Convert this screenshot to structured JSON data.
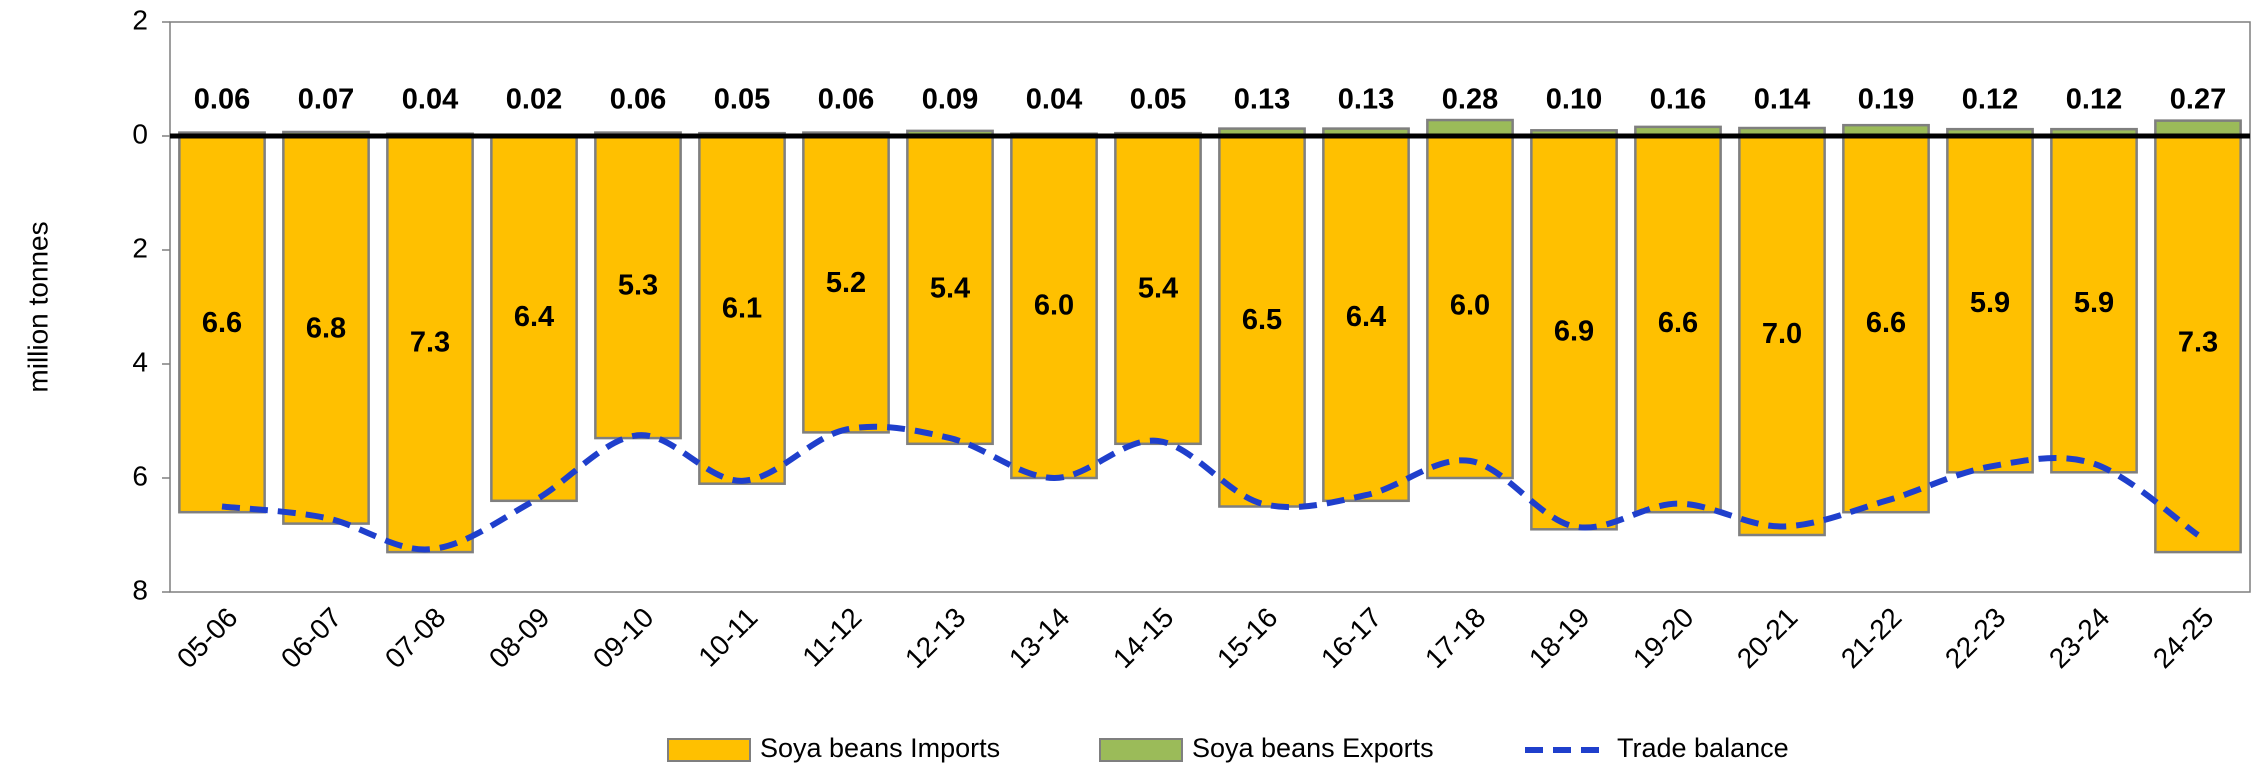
{
  "chart_data": {
    "type": "bar",
    "y_label": "million tonnes",
    "categories": [
      "05-06",
      "06-07",
      "07-08",
      "08-09",
      "09-10",
      "10-11",
      "11-12",
      "12-13",
      "13-14",
      "14-15",
      "15-16",
      "16-17",
      "17-18",
      "18-19",
      "19-20",
      "20-21",
      "21-22",
      "22-23",
      "23-24",
      "24-25"
    ],
    "series": [
      {
        "name": "Soya beans Imports",
        "color": "#FFC000",
        "type": "bar",
        "values": [
          -6.6,
          -6.8,
          -7.3,
          -6.4,
          -5.3,
          -6.1,
          -5.2,
          -5.4,
          -6.0,
          -5.4,
          -6.5,
          -6.4,
          -6.0,
          -6.9,
          -6.6,
          -7.0,
          -6.6,
          -5.9,
          -5.9,
          -7.3
        ],
        "value_labels": [
          "6.6",
          "6.8",
          "7.3",
          "6.4",
          "5.3",
          "6.1",
          "5.2",
          "5.4",
          "6.0",
          "5.4",
          "6.5",
          "6.4",
          "6.0",
          "6.9",
          "6.6",
          "7.0",
          "6.6",
          "5.9",
          "5.9",
          "7.3"
        ]
      },
      {
        "name": "Soya beans Exports",
        "color": "#9BBB59",
        "type": "bar",
        "values": [
          0.06,
          0.07,
          0.04,
          0.02,
          0.06,
          0.05,
          0.06,
          0.09,
          0.04,
          0.05,
          0.13,
          0.13,
          0.28,
          0.1,
          0.16,
          0.14,
          0.19,
          0.12,
          0.12,
          0.27
        ],
        "value_labels": [
          "0.06",
          "0.07",
          "0.04",
          "0.02",
          "0.06",
          "0.05",
          "0.06",
          "0.09",
          "0.04",
          "0.05",
          "0.13",
          "0.13",
          "0.28",
          "0.10",
          "0.16",
          "0.14",
          "0.19",
          "0.12",
          "0.12",
          "0.27"
        ]
      },
      {
        "name": "Trade balance",
        "color": "#1F3FCC",
        "type": "line",
        "dashed": true,
        "values": [
          -6.5,
          -6.7,
          -7.25,
          -6.4,
          -5.25,
          -6.05,
          -5.15,
          -5.3,
          -6.0,
          -5.35,
          -6.45,
          -6.3,
          -5.7,
          -6.85,
          -6.45,
          -6.85,
          -6.4,
          -5.8,
          -5.75,
          -7.0
        ]
      }
    ],
    "ylim": [
      -8,
      2
    ],
    "yticks": [
      {
        "value": -8,
        "label": "8"
      },
      {
        "value": -6,
        "label": "6"
      },
      {
        "value": -4,
        "label": "4"
      },
      {
        "value": -2,
        "label": "2"
      },
      0,
      2
    ],
    "legend": "bottom"
  }
}
